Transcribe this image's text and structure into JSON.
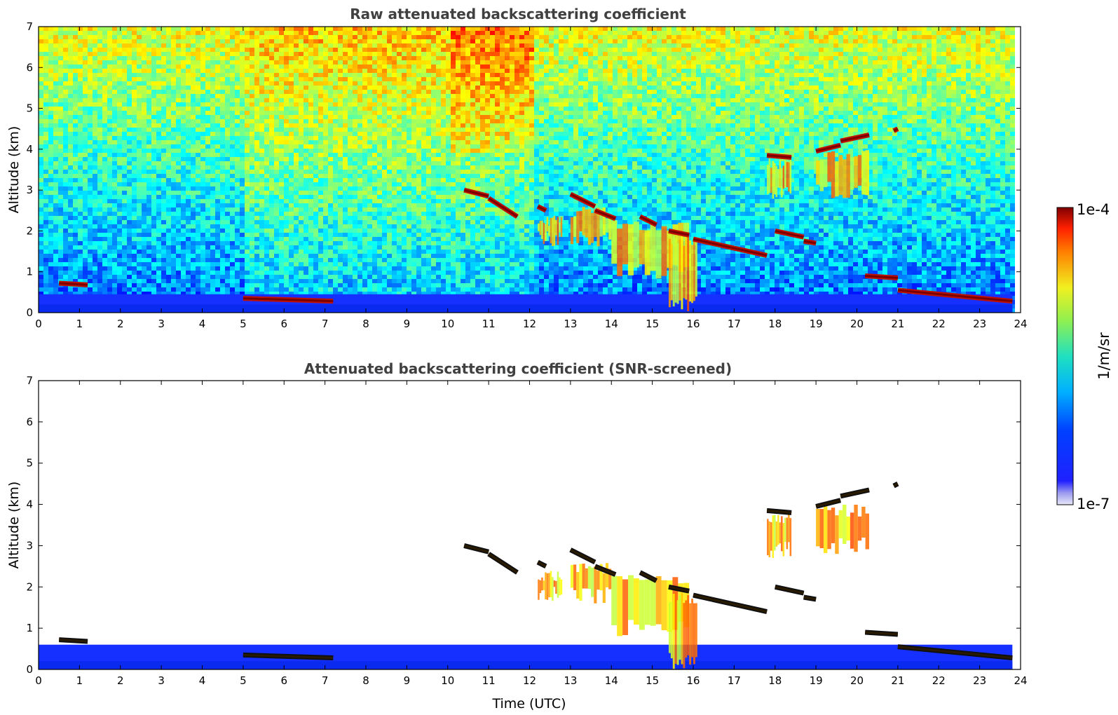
{
  "chart_data": [
    {
      "type": "heatmap",
      "title": "Raw attenuated backscattering coefficient",
      "xlabel": "",
      "ylabel": "Altitude (km)",
      "xlim": [
        0,
        24
      ],
      "ylim": [
        0,
        7
      ],
      "xticks": [
        0,
        1,
        2,
        3,
        4,
        5,
        6,
        7,
        8,
        9,
        10,
        11,
        12,
        13,
        14,
        15,
        16,
        17,
        18,
        19,
        20,
        21,
        22,
        23,
        24
      ],
      "yticks": [
        0,
        1,
        2,
        3,
        4,
        5,
        6,
        7
      ],
      "data_end_time": 23.8,
      "background": "noisy",
      "cloud_layers": [
        {
          "t": [
            0.5,
            1.2
          ],
          "alt": [
            0.72,
            0.68
          ]
        },
        {
          "t": [
            5.0,
            7.2
          ],
          "alt": [
            0.35,
            0.28
          ]
        },
        {
          "t": [
            10.4,
            11.0
          ],
          "alt": [
            3.0,
            2.85
          ]
        },
        {
          "t": [
            11.0,
            11.7
          ],
          "alt": [
            2.8,
            2.35
          ]
        },
        {
          "t": [
            12.2,
            12.4
          ],
          "alt": [
            2.6,
            2.5
          ]
        },
        {
          "t": [
            13.0,
            13.6
          ],
          "alt": [
            2.9,
            2.6
          ]
        },
        {
          "t": [
            13.6,
            14.1
          ],
          "alt": [
            2.5,
            2.3
          ]
        },
        {
          "t": [
            14.7,
            15.1
          ],
          "alt": [
            2.35,
            2.15
          ]
        },
        {
          "t": [
            15.4,
            15.9
          ],
          "alt": [
            2.0,
            1.9
          ]
        },
        {
          "t": [
            16.0,
            17.8
          ],
          "alt": [
            1.8,
            1.4
          ]
        },
        {
          "t": [
            18.0,
            18.7
          ],
          "alt": [
            2.0,
            1.85
          ]
        },
        {
          "t": [
            18.7,
            19.0
          ],
          "alt": [
            1.75,
            1.7
          ]
        },
        {
          "t": [
            17.8,
            18.4
          ],
          "alt": [
            3.85,
            3.8
          ]
        },
        {
          "t": [
            19.0,
            19.6
          ],
          "alt": [
            3.95,
            4.1
          ]
        },
        {
          "t": [
            19.6,
            20.3
          ],
          "alt": [
            4.2,
            4.35
          ]
        },
        {
          "t": [
            20.9,
            21.0
          ],
          "alt": [
            4.45,
            4.5
          ]
        },
        {
          "t": [
            20.2,
            21.0
          ],
          "alt": [
            0.9,
            0.85
          ]
        },
        {
          "t": [
            21.0,
            23.8
          ],
          "alt": [
            0.55,
            0.28
          ]
        }
      ],
      "precipitation": [
        {
          "t0": 14.0,
          "t1": 15.9,
          "top": 2.3,
          "bottom": 0.8
        },
        {
          "t0": 12.2,
          "t1": 12.8,
          "top": 2.4,
          "bottom": 1.6
        },
        {
          "t0": 13.0,
          "t1": 14.0,
          "top": 2.6,
          "bottom": 1.6
        },
        {
          "t0": 15.4,
          "t1": 16.1,
          "top": 1.9,
          "bottom": 0.0
        },
        {
          "t0": 19.0,
          "t1": 20.3,
          "top": 4.0,
          "bottom": 2.8
        },
        {
          "t0": 17.8,
          "t1": 18.4,
          "top": 3.8,
          "bottom": 2.7
        }
      ]
    },
    {
      "type": "heatmap",
      "title": "Attenuated backscattering coefficient (SNR-screened)",
      "xlabel": "Time (UTC)",
      "ylabel": "Altitude (km)",
      "xlim": [
        0,
        24
      ],
      "ylim": [
        0,
        7
      ],
      "xticks": [
        0,
        1,
        2,
        3,
        4,
        5,
        6,
        7,
        8,
        9,
        10,
        11,
        12,
        13,
        14,
        15,
        16,
        17,
        18,
        19,
        20,
        21,
        22,
        23,
        24
      ],
      "yticks": [
        0,
        1,
        2,
        3,
        4,
        5,
        6,
        7
      ],
      "data_end_time": 23.8,
      "background": "screened"
    }
  ],
  "colorbar": {
    "label": "1/m/sr",
    "max_label": "1e-4",
    "min_label": "1e-7",
    "colormap": "jet",
    "scale": "log"
  }
}
